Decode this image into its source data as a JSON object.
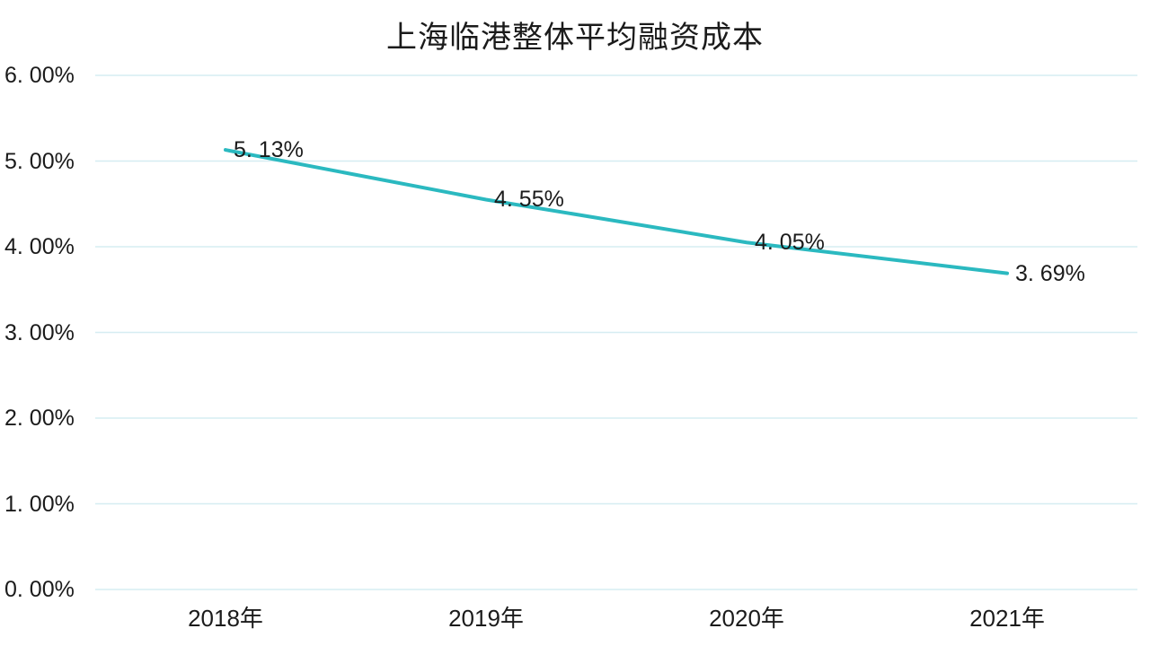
{
  "chart_data": {
    "type": "line",
    "title": "上海临港整体平均融资成本",
    "categories": [
      "2018年",
      "2019年",
      "2020年",
      "2021年"
    ],
    "values": [
      5.13,
      4.55,
      4.05,
      3.69
    ],
    "point_labels": [
      "5. 13%",
      "4. 55%",
      "4. 05%",
      "3. 69%"
    ],
    "y_ticks": [
      "6. 00%",
      "5. 00%",
      "4. 00%",
      "3. 00%",
      "2. 00%",
      "1. 00%",
      "0. 00%"
    ],
    "y_tick_values": [
      6,
      5,
      4,
      3,
      2,
      1,
      0
    ],
    "ylim": [
      0,
      6
    ],
    "grid": "horizontal",
    "legend": "none",
    "line_color": "#2bb9c0",
    "gridline_color": "#d6edf2",
    "text_color": "#1b1b1b"
  }
}
